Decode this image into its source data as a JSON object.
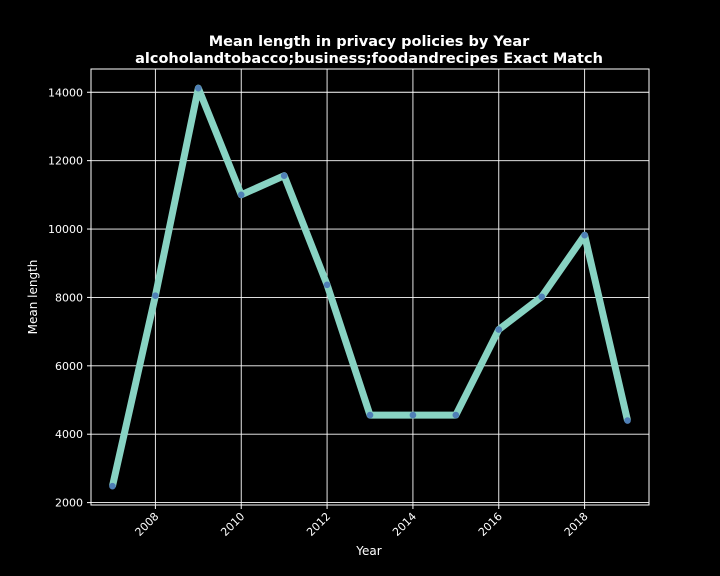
{
  "chart_data": {
    "type": "line",
    "title": "Mean length in privacy policies by Year",
    "subtitle": "alcoholandtobacco;business;foodandrecipes Exact Match",
    "xlabel": "Year",
    "ylabel": "Mean length",
    "x": [
      2007,
      2008,
      2009,
      2010,
      2011,
      2012,
      2013,
      2014,
      2015,
      2016,
      2017,
      2018,
      2019
    ],
    "series": [
      {
        "values": [
          2480,
          8050,
          14120,
          11000,
          11560,
          8370,
          4560,
          4560,
          4560,
          7060,
          8020,
          9820,
          4400
        ]
      }
    ],
    "xlim": [
      2006.5,
      2019.5
    ],
    "ylim": [
      1930,
      14680
    ],
    "xticks": [
      2008,
      2010,
      2012,
      2014,
      2016,
      2018
    ],
    "yticks": [
      2000,
      4000,
      6000,
      8000,
      10000,
      12000,
      14000
    ],
    "grid": true,
    "colors": {
      "background": "#000000",
      "line": "#88d3c3",
      "marker": "#4f7fb6",
      "grid": "#ffffff",
      "text": "#ffffff"
    }
  }
}
